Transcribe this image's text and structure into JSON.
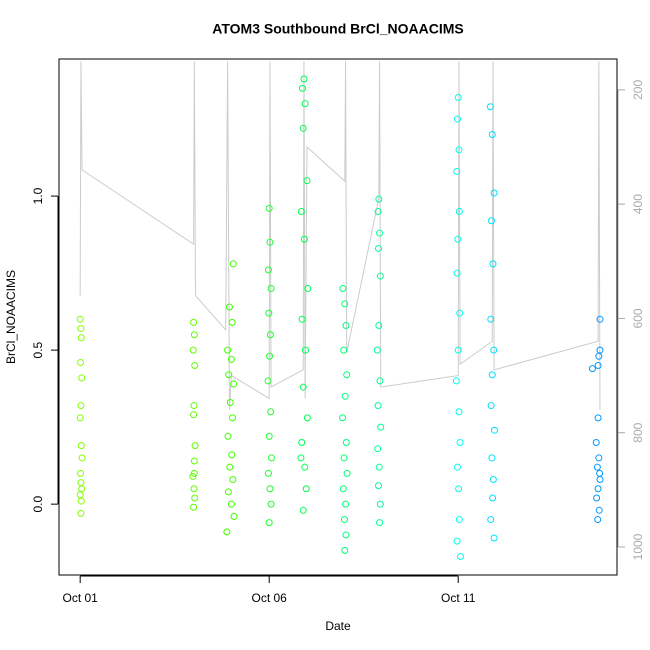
{
  "chart_data": {
    "type": "scatter",
    "title": "ATOM3 Southbound BrCl_NOAACIMS",
    "x_label": "Date",
    "y_label": "BrCl_NOAACIMS",
    "xlim": [
      -0.56,
      14.2
    ],
    "xticks": [
      {
        "value": 0,
        "label": "Oct 01"
      },
      {
        "value": 5,
        "label": "Oct 06"
      },
      {
        "value": 10,
        "label": "Oct 11"
      }
    ],
    "ylim": [
      -0.23,
      1.445
    ],
    "yticks": [
      {
        "value": 0,
        "label": "0.0"
      },
      {
        "value": 0.5,
        "label": "0.5"
      },
      {
        "value": 1,
        "label": "1.0"
      }
    ],
    "y2lim": [
      1049,
      146
    ],
    "y2ticks": [
      200,
      400,
      600,
      800,
      1000
    ],
    "series": [
      {
        "type": "line",
        "axis": "y2",
        "color": "#cccccc",
        "x": [
          0.0,
          0.02,
          0.05,
          3.0,
          3.02,
          3.05,
          3.85,
          3.9,
          3.95,
          4.0,
          5.0,
          5.02,
          5.05,
          5.9,
          5.92,
          5.95,
          6.0,
          7.0,
          7.02,
          7.05,
          7.9,
          7.92,
          7.95,
          10.0,
          10.02,
          10.05,
          10.9,
          10.92,
          10.95,
          13.7,
          13.72,
          13.75
        ],
        "values": [
          560,
          150,
          340,
          470,
          150,
          560,
          620,
          150,
          760,
          700,
          740,
          150,
          720,
          690,
          150,
          740,
          300,
          360,
          150,
          660,
          390,
          150,
          720,
          700,
          150,
          680,
          640,
          150,
          690,
          640,
          150,
          760
        ]
      },
      {
        "color": "#80ff00",
        "x": [
          0.0,
          0.02,
          0.03,
          0.01,
          0.04,
          0.02,
          0.0,
          0.03,
          0.05,
          0.01,
          0.02,
          0.04,
          0.0,
          0.03,
          0.02
        ],
        "values": [
          0.6,
          0.57,
          0.54,
          0.46,
          0.41,
          0.32,
          0.28,
          0.19,
          0.15,
          0.1,
          0.07,
          0.05,
          0.03,
          0.01,
          -0.03
        ]
      },
      {
        "color": "#60ff00",
        "x": [
          3.0,
          3.02,
          2.99,
          3.03,
          3.01,
          3.0,
          3.04,
          3.02,
          2.98,
          3.01,
          3.03,
          3.0,
          3.02
        ],
        "values": [
          0.59,
          0.55,
          0.5,
          0.45,
          0.32,
          0.29,
          0.19,
          0.14,
          0.09,
          0.05,
          0.02,
          -0.01,
          0.1
        ]
      },
      {
        "color": "#40ff00",
        "x": [
          4.05,
          3.95,
          4.02,
          3.9,
          4.0,
          3.93,
          4.06,
          3.97,
          4.03,
          3.91,
          4.01,
          3.96,
          4.04,
          3.92,
          4.0,
          4.07,
          3.88
        ],
        "values": [
          0.78,
          0.64,
          0.59,
          0.5,
          0.47,
          0.42,
          0.39,
          0.33,
          0.28,
          0.22,
          0.16,
          0.12,
          0.08,
          0.04,
          0.0,
          -0.04,
          -0.09
        ]
      },
      {
        "color": "#20ff30",
        "x": [
          5.0,
          5.02,
          4.98,
          5.05,
          4.99,
          5.03,
          5.01,
          4.97,
          5.04,
          5.0,
          5.06,
          4.98,
          5.02,
          5.05,
          5.0
        ],
        "values": [
          0.96,
          0.85,
          0.76,
          0.7,
          0.62,
          0.55,
          0.48,
          0.4,
          0.3,
          0.22,
          0.15,
          0.1,
          0.05,
          0.0,
          -0.06
        ]
      },
      {
        "color": "#00ff50",
        "x": [
          5.92,
          5.88,
          5.95,
          5.9,
          6.0,
          5.85,
          5.93,
          6.02,
          5.87,
          5.96,
          5.9,
          6.01,
          5.86,
          5.94,
          5.98,
          5.9,
          5.84
        ],
        "values": [
          1.38,
          1.35,
          1.3,
          1.22,
          1.05,
          0.95,
          0.86,
          0.7,
          0.6,
          0.5,
          0.38,
          0.28,
          0.2,
          0.12,
          0.05,
          -0.02,
          0.15
        ]
      },
      {
        "color": "#00ff78",
        "x": [
          6.95,
          7.0,
          7.03,
          6.97,
          7.05,
          7.01,
          6.94,
          7.04,
          6.98,
          7.06,
          6.96,
          7.02,
          6.99,
          7.03,
          7.0
        ],
        "values": [
          0.7,
          0.65,
          0.58,
          0.5,
          0.42,
          0.35,
          0.28,
          0.2,
          0.15,
          0.1,
          0.05,
          0.0,
          -0.05,
          -0.1,
          -0.15
        ]
      },
      {
        "color": "#00ff95",
        "x": [
          7.9,
          7.88,
          7.92,
          7.89,
          7.94,
          7.9,
          7.86,
          7.93,
          7.88,
          7.95,
          7.87,
          7.91,
          7.89,
          7.94,
          7.92
        ],
        "values": [
          0.99,
          0.95,
          0.88,
          0.83,
          0.74,
          0.58,
          0.5,
          0.4,
          0.32,
          0.25,
          0.18,
          0.12,
          0.06,
          0.0,
          -0.06
        ]
      },
      {
        "color": "#00ffee",
        "x": [
          10.0,
          9.98,
          10.02,
          9.96,
          10.03,
          9.99,
          9.97,
          10.04,
          10.0,
          9.95,
          10.02,
          10.05,
          9.98,
          10.01,
          10.03,
          9.97,
          10.06
        ],
        "values": [
          1.32,
          1.25,
          1.15,
          1.08,
          0.95,
          0.86,
          0.75,
          0.62,
          0.5,
          0.4,
          0.3,
          0.2,
          0.12,
          0.05,
          -0.05,
          -0.12,
          -0.17
        ]
      },
      {
        "color": "#00e0ff",
        "x": [
          10.85,
          10.9,
          10.95,
          10.88,
          10.92,
          10.86,
          10.94,
          10.9,
          10.87,
          10.96,
          10.89,
          10.93,
          10.91,
          10.86,
          10.95
        ],
        "values": [
          1.29,
          1.2,
          1.01,
          0.92,
          0.78,
          0.6,
          0.5,
          0.42,
          0.32,
          0.24,
          0.15,
          0.08,
          0.02,
          -0.05,
          -0.11
        ]
      },
      {
        "color": "#0099ff",
        "x": [
          13.75,
          13.75,
          13.72,
          13.7,
          13.55,
          13.7,
          13.65,
          13.72,
          13.68,
          13.75,
          13.7,
          13.66,
          13.73,
          13.69,
          13.74
        ],
        "values": [
          0.6,
          0.5,
          0.48,
          0.45,
          0.44,
          0.28,
          0.2,
          0.15,
          0.12,
          0.08,
          0.05,
          0.02,
          -0.02,
          -0.05,
          0.1
        ]
      }
    ]
  }
}
